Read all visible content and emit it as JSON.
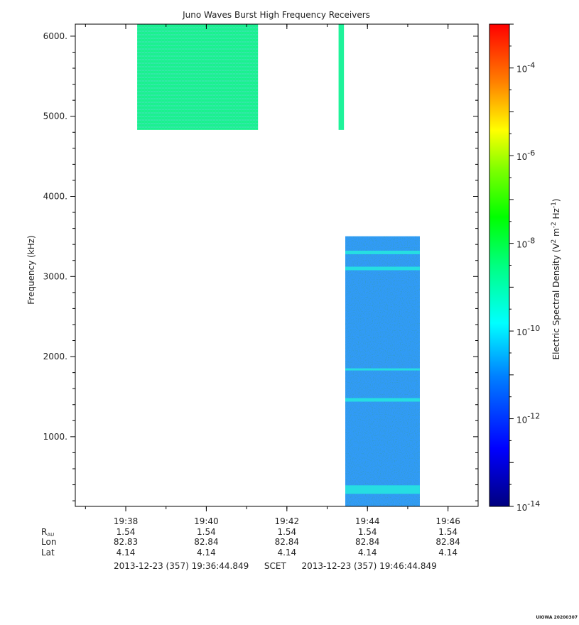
{
  "chart_data": {
    "type": "heatmap",
    "title": "Juno Waves Burst High Frequency Receivers",
    "ylabel": "Frequency (kHz)",
    "colorbar_label": "Electric Spectral Density (V² m⁻² Hz⁻¹)",
    "colorbar_label_base": "Electric Spectral Density (V",
    "x_ticks": [
      "19:38",
      "19:40",
      "19:42",
      "19:44",
      "19:46"
    ],
    "x_range": [
      "19:36:44.849",
      "19:46:44.849"
    ],
    "y_ticks": [
      "1000.",
      "2000.",
      "3000.",
      "4000.",
      "5000.",
      "6000."
    ],
    "y_range": [
      130,
      6150
    ],
    "colorbar_ticks": [
      {
        "base": "10",
        "exp": "-4"
      },
      {
        "base": "10",
        "exp": "-6"
      },
      {
        "base": "10",
        "exp": "-8"
      },
      {
        "base": "10",
        "exp": "-10"
      },
      {
        "base": "10",
        "exp": "-12"
      },
      {
        "base": "10",
        "exp": "-14"
      }
    ],
    "colorbar_log_range": [
      -14,
      -3
    ],
    "blocks": [
      {
        "t_start": "19:38:17",
        "t_end": "19:41:17",
        "f_min": 4830,
        "f_max": 6150,
        "level_log10": -10.4,
        "pattern": "striped"
      },
      {
        "t_start": "19:43:17",
        "t_end": "19:43:25",
        "f_min": 4830,
        "f_max": 6150,
        "level_log10": -10.4,
        "pattern": "uniform"
      },
      {
        "t_start": "19:43:27",
        "t_end": "19:45:18",
        "f_min": 130,
        "f_max": 3500,
        "level_log10": -12.0,
        "pattern": "noisy",
        "emission_bands_khz": [
          3300,
          3100,
          1840,
          1460,
          340
        ]
      }
    ]
  },
  "ephemeris": {
    "rows": [
      {
        "label": "R",
        "label_sub": "AU",
        "values": [
          "1.54",
          "1.54",
          "1.54",
          "1.54",
          "1.54"
        ]
      },
      {
        "label": "Lon",
        "label_sub": "",
        "values": [
          "82.83",
          "82.84",
          "82.84",
          "82.84",
          "82.84"
        ]
      },
      {
        "label": "Lat",
        "label_sub": "",
        "values": [
          "4.14",
          "4.14",
          "4.14",
          "4.14",
          "4.14"
        ]
      }
    ]
  },
  "time_span": {
    "start": "2013-12-23 (357) 19:36:44.849",
    "frame": "SCET",
    "end": "2013-12-23 (357) 19:46:44.849"
  },
  "stamp": "UIOWA 20200307"
}
